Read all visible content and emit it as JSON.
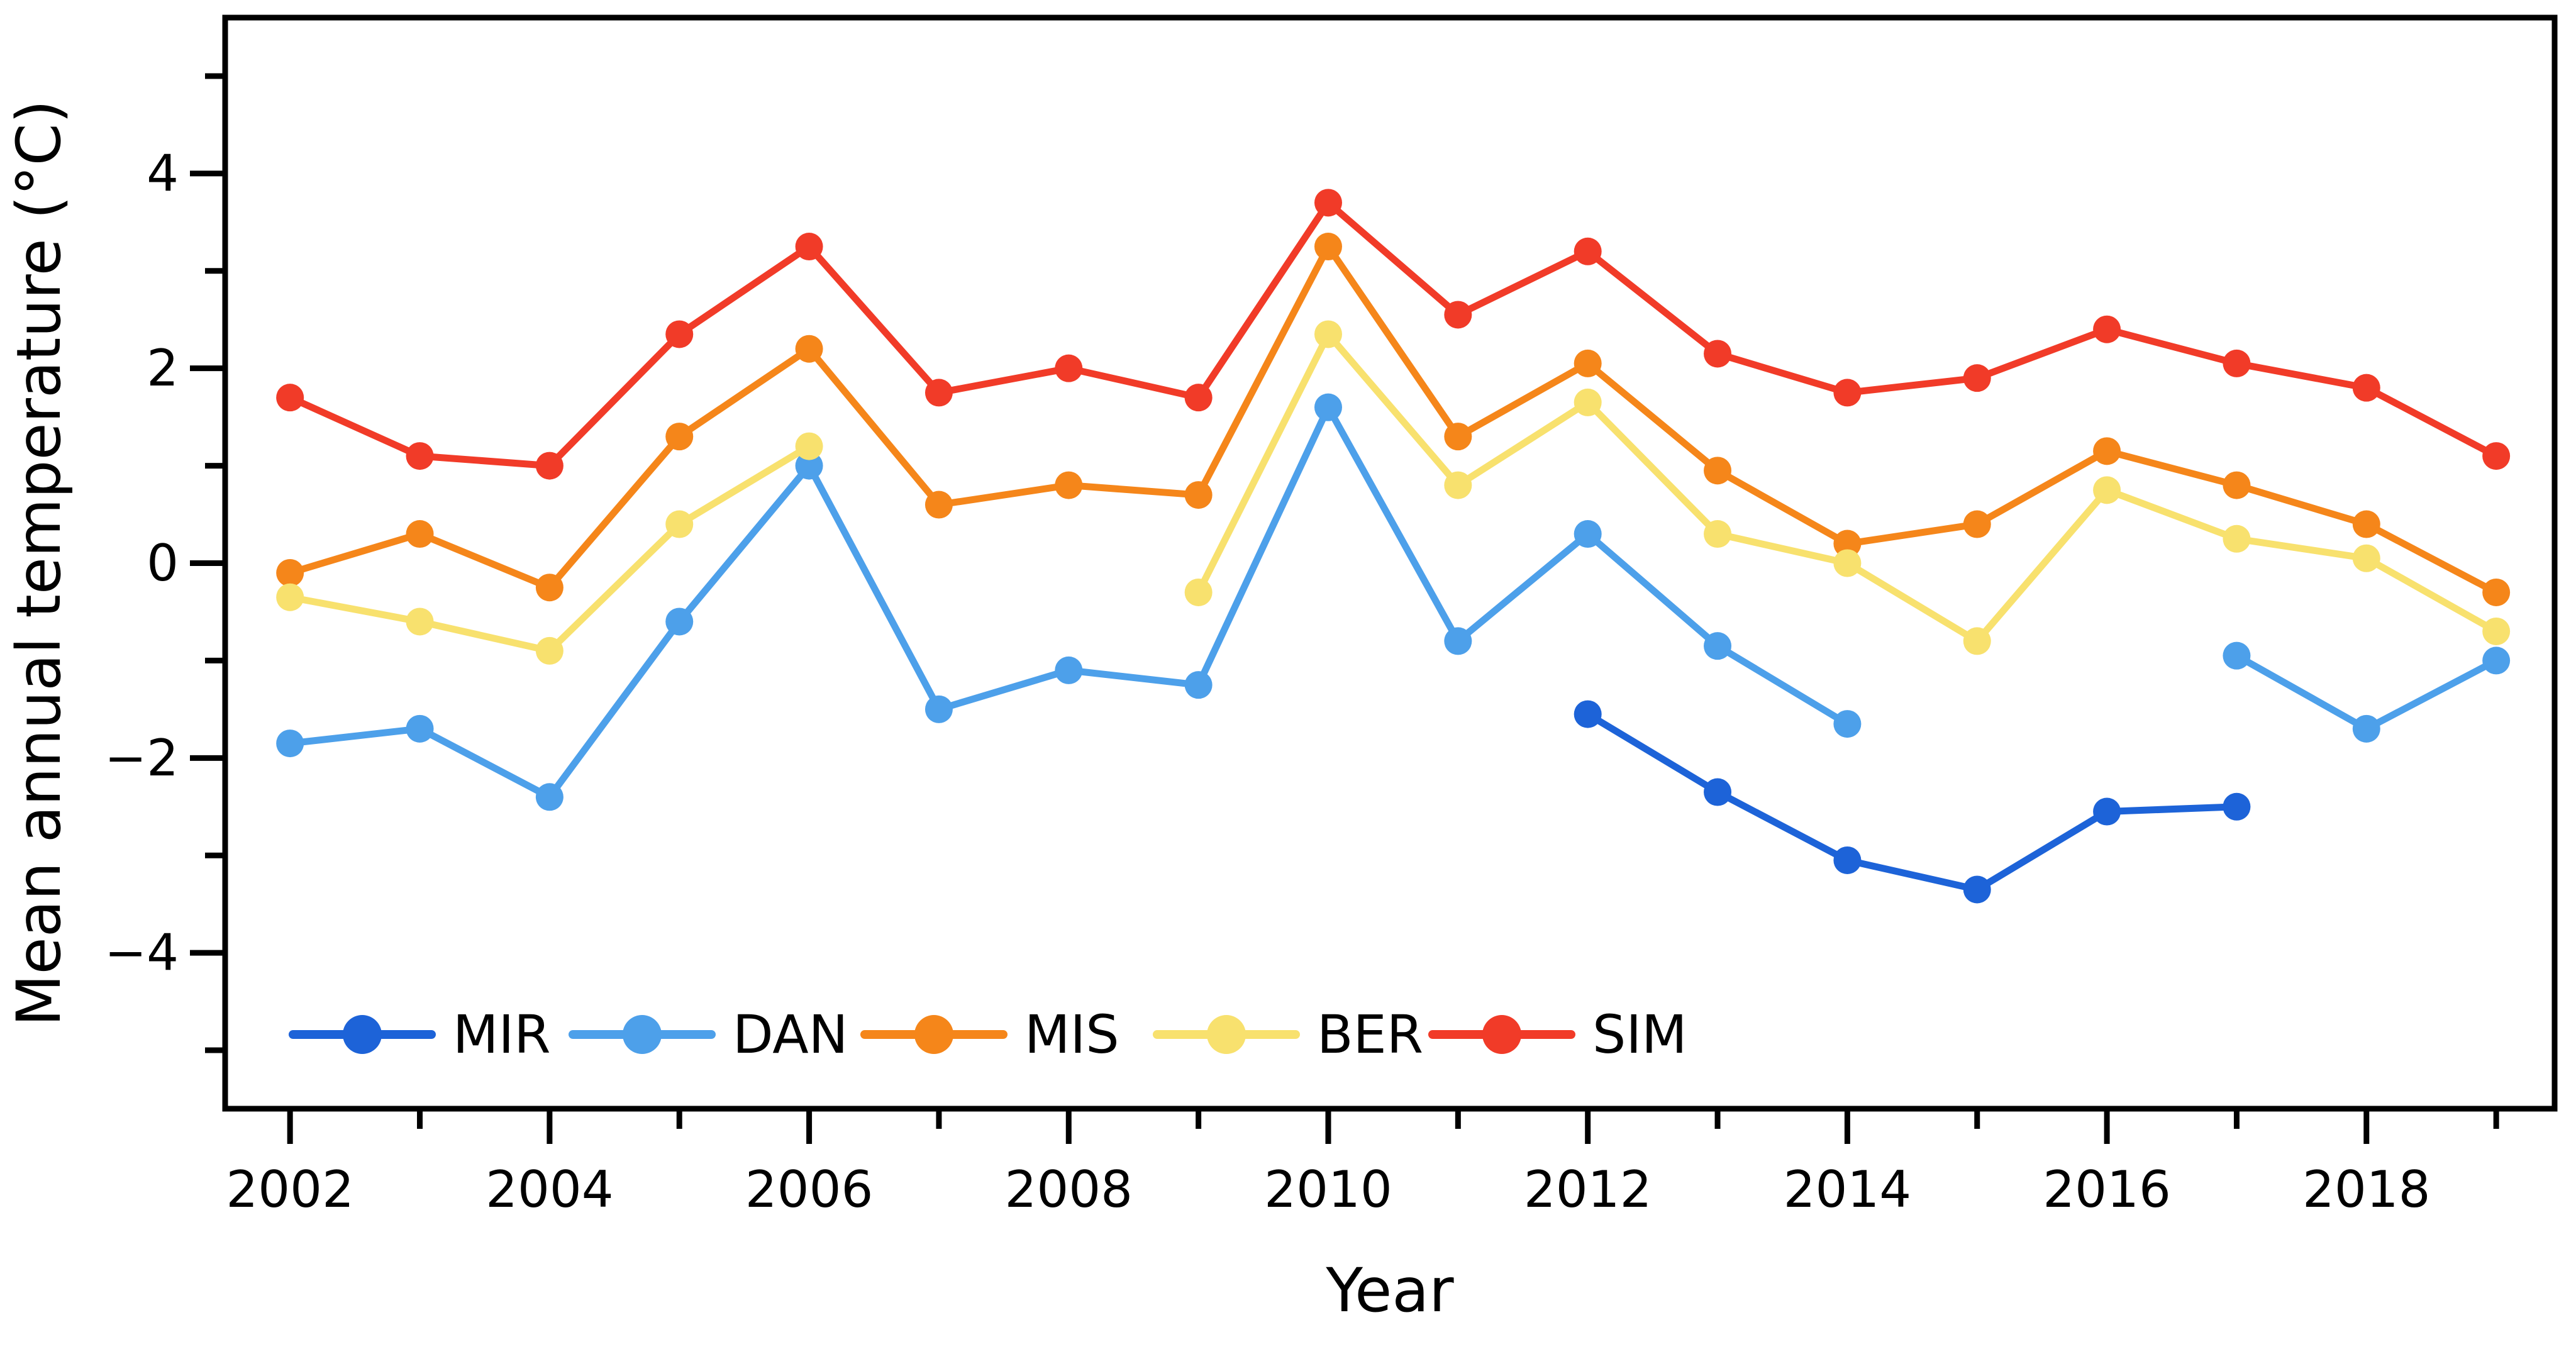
{
  "chart_data": {
    "type": "line",
    "title": "",
    "xlabel": "Year",
    "ylabel": "Mean annual temperature (°C)",
    "x": [
      2002,
      2003,
      2004,
      2005,
      2006,
      2007,
      2008,
      2009,
      2010,
      2011,
      2012,
      2013,
      2014,
      2015,
      2016,
      2017,
      2018,
      2019
    ],
    "series": [
      {
        "name": "MIR",
        "color": "#1d63d8",
        "values": [
          null,
          null,
          null,
          null,
          null,
          null,
          null,
          null,
          null,
          null,
          -1.55,
          -2.35,
          -3.05,
          -3.35,
          -2.55,
          -2.5,
          null,
          null
        ]
      },
      {
        "name": "DAN",
        "color": "#4da0ea",
        "values": [
          -1.85,
          -1.7,
          -2.4,
          -0.6,
          1.0,
          -1.5,
          -1.1,
          -1.25,
          1.6,
          -0.8,
          0.3,
          -0.85,
          -1.65,
          null,
          null,
          -0.95,
          -1.7,
          -1.0
        ]
      },
      {
        "name": "MIS",
        "color": "#f5861a",
        "values": [
          -0.1,
          0.3,
          -0.25,
          1.3,
          2.2,
          0.6,
          0.8,
          0.7,
          3.25,
          1.3,
          2.05,
          0.95,
          0.2,
          0.4,
          1.15,
          0.8,
          0.4,
          -0.3
        ]
      },
      {
        "name": "BER",
        "color": "#f8e16e",
        "values": [
          -0.35,
          -0.6,
          -0.9,
          0.4,
          1.2,
          null,
          null,
          -0.3,
          2.35,
          0.8,
          1.65,
          0.3,
          0.0,
          -0.8,
          0.75,
          0.25,
          0.05,
          -0.7
        ]
      },
      {
        "name": "SIM",
        "color": "#f13b28",
        "values": [
          1.7,
          1.1,
          1.0,
          2.35,
          3.25,
          1.75,
          2.0,
          1.7,
          3.7,
          2.55,
          3.2,
          2.15,
          1.75,
          1.9,
          2.4,
          2.05,
          1.8,
          1.1
        ]
      }
    ],
    "xlim": [
      2001.5,
      2019.45
    ],
    "ylim": [
      -5.6,
      5.6
    ],
    "y_ticks_major": [
      4,
      2,
      0,
      -2,
      -4
    ],
    "y_tick_labels": [
      "4",
      "2",
      "0",
      "−2",
      "−4"
    ],
    "y_ticks_minor": [
      5,
      3,
      1,
      -1,
      -3,
      -5
    ],
    "x_ticks_major": [
      2002,
      2004,
      2006,
      2008,
      2010,
      2012,
      2014,
      2016,
      2018
    ],
    "x_tick_labels": [
      "2002",
      "2004",
      "2006",
      "2008",
      "2010",
      "2012",
      "2014",
      "2016",
      "2018"
    ],
    "x_ticks_minor": [
      2003,
      2005,
      2007,
      2009,
      2011,
      2013,
      2015,
      2017,
      2019
    ],
    "grid": false,
    "legend": {
      "position": "bottom-inside",
      "entries": [
        "MIR",
        "DAN",
        "MIS",
        "BER",
        "SIM"
      ]
    },
    "axis_color": "#000000"
  }
}
